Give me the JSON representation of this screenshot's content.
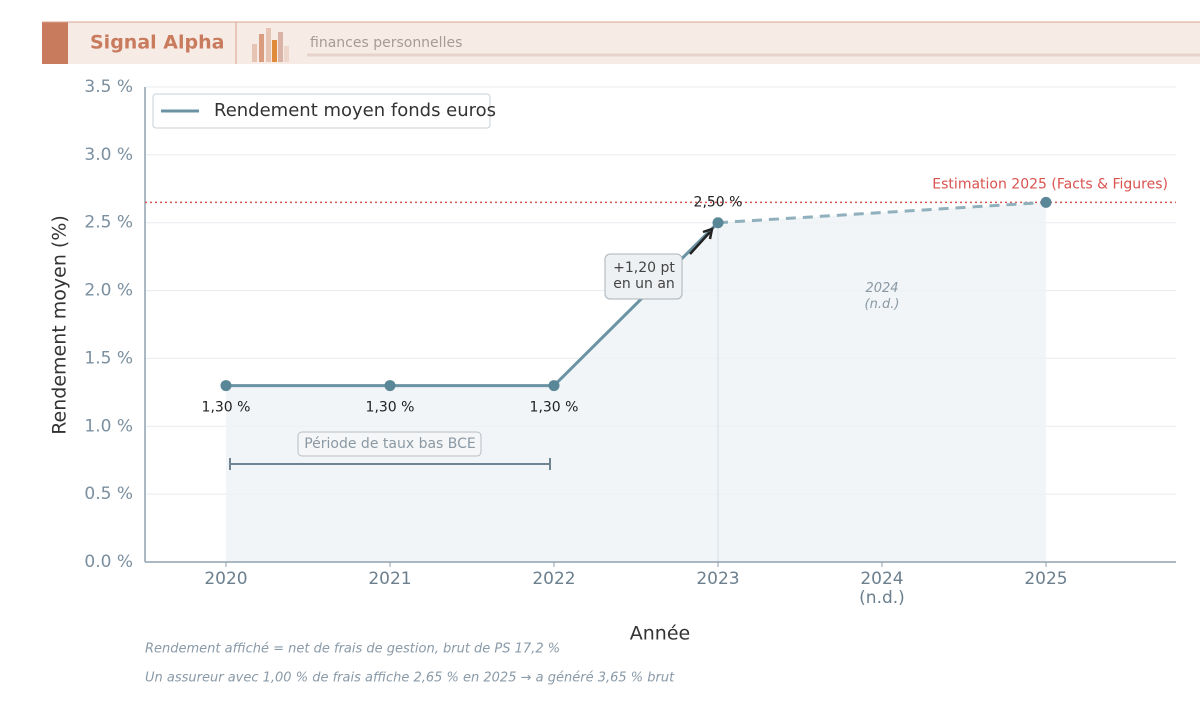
{
  "header": {
    "brand": "Signal Alpha",
    "section": "finances personnelles"
  },
  "chart_data": {
    "type": "line",
    "x_label": "Année",
    "y_label": "Rendement moyen (%)",
    "categories": [
      "2020",
      "2021",
      "2022",
      "2023",
      "2024\n(n.d.)",
      "2025"
    ],
    "series": [
      {
        "name": "Rendement moyen fonds euros",
        "color": "#6a93a3",
        "values": [
          1.3,
          1.3,
          1.3,
          2.5,
          null,
          2.65
        ],
        "value_labels": [
          "1,30 %",
          "1,30 %",
          "1,30 %",
          "2,50 %",
          null,
          null
        ]
      }
    ],
    "ylim": [
      0,
      3.5
    ],
    "yticks": [
      {
        "value": 0,
        "label": "0.0 %"
      },
      {
        "value": 0.5,
        "label": "0.5 %"
      },
      {
        "value": 1,
        "label": "1.0 %"
      },
      {
        "value": 1.5,
        "label": "1.5 %"
      },
      {
        "value": 2,
        "label": "2.0 %"
      },
      {
        "value": 2.5,
        "label": "2.5 %"
      },
      {
        "value": 3,
        "label": "3.0 %"
      },
      {
        "value": 3.5,
        "label": "3.5 %"
      }
    ],
    "grid": true,
    "legend": "upper left",
    "reference_line": {
      "value": 2.65,
      "label": "Estimation 2025 (Facts & Figures)",
      "color": "#d9534f"
    },
    "annotations": [
      "+1,20 pt\nen un an",
      "Période de taux bas BCE",
      "2024\n(n.d.)"
    ],
    "footnotes": [
      "Rendement affiché = net de frais de gestion, brut de PS 17,2 %",
      "Un assureur avec 1,00 % de frais affiche 2,65 % en 2025 → a généré 3,65 % brut"
    ]
  }
}
